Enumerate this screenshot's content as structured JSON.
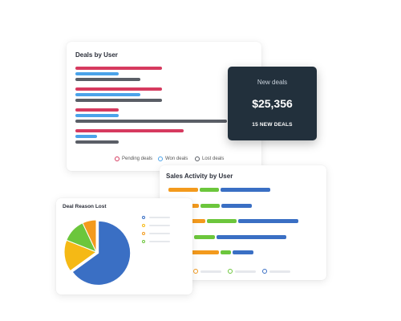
{
  "deals_by_user": {
    "title": "Deals by User",
    "colors": {
      "pending": "#d63a5f",
      "won": "#4ba3ea",
      "lost": "#5a5e66"
    },
    "legend": [
      {
        "label": "Pending deals",
        "color": "#d63a5f"
      },
      {
        "label": "Won deals",
        "color": "#4ba3ea"
      },
      {
        "label": "Lost deals",
        "color": "#5a5e66"
      }
    ],
    "chart_data": {
      "type": "bar",
      "categories": [
        "",
        "",
        "",
        ""
      ],
      "series": [
        {
          "name": "Pending deals",
          "values": [
            108,
            108,
            54,
            135
          ]
        },
        {
          "name": "Won deals",
          "values": [
            54,
            81,
            54,
            27
          ]
        },
        {
          "name": "Lost deals",
          "values": [
            81,
            108,
            189,
            54
          ]
        }
      ]
    }
  },
  "new_deals": {
    "label": "New deals",
    "amount": "$25,356",
    "count_label": "15 NEW DEALS"
  },
  "sales_activity": {
    "title": "Sales Activity by User",
    "colors": [
      "#f39a1d",
      "#6cc63c",
      "#3a6fc4"
    ],
    "chart_data": {
      "type": "bar",
      "categories": [
        "",
        "",
        "",
        "",
        ""
      ],
      "series": [
        {
          "values": [
            37,
            38,
            46,
            30,
            63
          ]
        },
        {
          "values": [
            24,
            24,
            37,
            26,
            13
          ]
        },
        {
          "values": [
            62,
            38,
            75,
            87,
            26
          ]
        }
      ]
    }
  },
  "deal_reason_lost": {
    "title": "Deal Reason Lost",
    "colors": [
      "#3a6fc4",
      "#f5b915",
      "#6cc63c",
      "#f39a1d"
    ],
    "chart_data": {
      "type": "pie",
      "values": [
        65,
        16,
        12,
        7
      ]
    }
  }
}
